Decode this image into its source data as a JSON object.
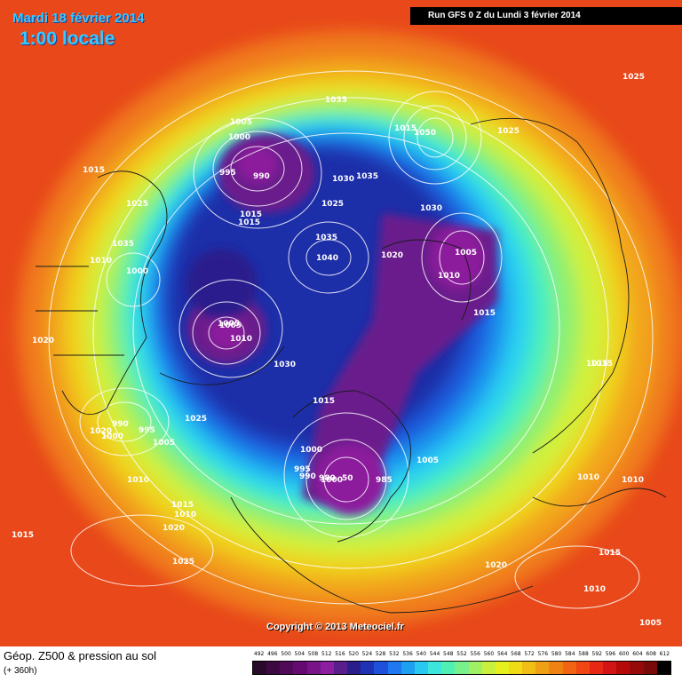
{
  "header": {
    "date": "Mardi 18 février 2014",
    "time": "1:00 locale",
    "run": "Run GFS 0 Z du Lundi 3 février 2014"
  },
  "copyright": "Copyright © 2013 Meteociel.fr",
  "footer": {
    "parameter": "Géop. Z500 & pression au sol",
    "horizon": "(+ 360h)"
  },
  "legend": {
    "values": [
      "492",
      "496",
      "500",
      "504",
      "508",
      "512",
      "516",
      "520",
      "524",
      "528",
      "532",
      "536",
      "540",
      "544",
      "548",
      "552",
      "556",
      "560",
      "564",
      "568",
      "572",
      "576",
      "580",
      "584",
      "588",
      "592",
      "596",
      "600",
      "604",
      "608",
      "612"
    ],
    "colors": [
      "#2a0a2a",
      "#3c0a40",
      "#500a58",
      "#640a70",
      "#781488",
      "#8c1ea0",
      "#5a1e8c",
      "#2a1e8c",
      "#1e32b4",
      "#1e50dc",
      "#1e78f0",
      "#1ea0f0",
      "#28c8f0",
      "#3ce6dc",
      "#50f0b4",
      "#78f08c",
      "#a0f064",
      "#c8f03c",
      "#e6f01e",
      "#f0dc14",
      "#f0be14",
      "#f0a014",
      "#f08214",
      "#f06414",
      "#f04614",
      "#e62814",
      "#d21414",
      "#b40a0a",
      "#960a0a",
      "#780a0a",
      "#000000"
    ]
  },
  "pressure_labels": [
    {
      "text": "1015"
    },
    {
      "text": "1035"
    },
    {
      "text": "1005"
    },
    {
      "text": "1000"
    },
    {
      "text": "995"
    },
    {
      "text": "990"
    },
    {
      "text": "1015"
    },
    {
      "text": "1050"
    },
    {
      "text": "1025"
    },
    {
      "text": "1035"
    },
    {
      "text": "1025"
    },
    {
      "text": "1015"
    },
    {
      "text": "1030"
    },
    {
      "text": "1035"
    },
    {
      "text": "1010"
    },
    {
      "text": "1015"
    },
    {
      "text": "1025"
    },
    {
      "text": "1030"
    },
    {
      "text": "1010"
    },
    {
      "text": "1005"
    },
    {
      "text": "1000"
    },
    {
      "text": "1035"
    },
    {
      "text": "1040"
    },
    {
      "text": "1020"
    },
    {
      "text": "1005"
    },
    {
      "text": "1010"
    },
    {
      "text": "1020"
    },
    {
      "text": "1025"
    },
    {
      "text": "1020"
    },
    {
      "text": "1005"
    },
    {
      "text": "1000"
    },
    {
      "text": "1015"
    },
    {
      "text": "1015"
    },
    {
      "text": "1030"
    },
    {
      "text": "1015"
    },
    {
      "text": "1025"
    },
    {
      "text": "990"
    },
    {
      "text": "995"
    },
    {
      "text": "1000"
    },
    {
      "text": "1005"
    },
    {
      "text": "1000"
    },
    {
      "text": "1005"
    },
    {
      "text": "995"
    },
    {
      "text": "990"
    },
    {
      "text": "980"
    },
    {
      "text": "50"
    },
    {
      "text": "985"
    },
    {
      "text": "1010"
    },
    {
      "text": "1010"
    },
    {
      "text": "1010"
    },
    {
      "text": "1020"
    },
    {
      "text": "1015"
    },
    {
      "text": "1025"
    },
    {
      "text": "1010"
    },
    {
      "text": "1015"
    },
    {
      "text": "1020"
    },
    {
      "text": "1010"
    },
    {
      "text": "1005"
    },
    {
      "text": "1015"
    },
    {
      "text": "1015"
    }
  ]
}
